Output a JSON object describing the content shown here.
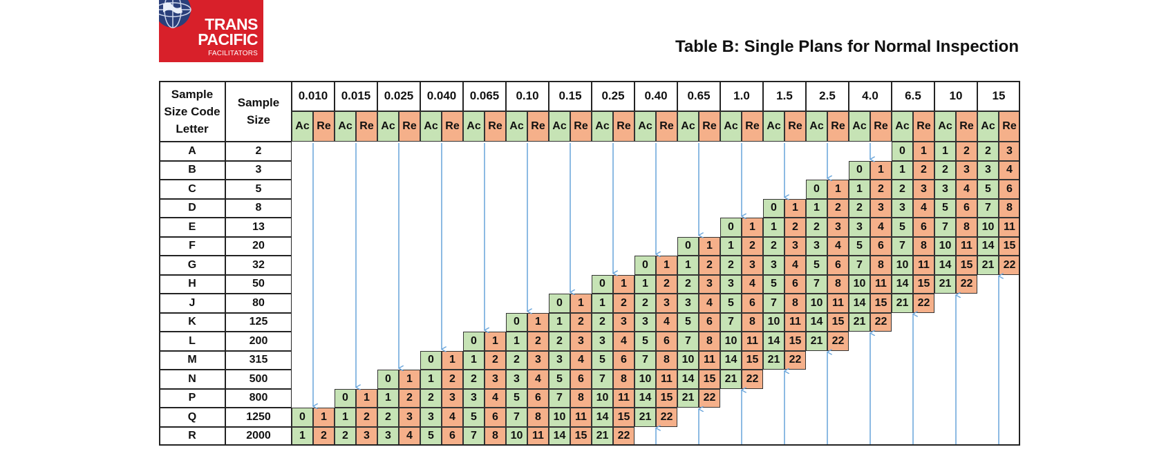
{
  "logo": {
    "line1": "TRANS",
    "line2": "PACIFIC",
    "line3": "FACILITATORS",
    "globe_icon": "globe-icon"
  },
  "title": "Table B: Single Plans for Normal Inspection",
  "table": {
    "header_code": [
      "Sample",
      "Size Code",
      "Letter"
    ],
    "header_size": [
      "Sample",
      "Size"
    ],
    "ac_label": "Ac",
    "re_label": "Re",
    "aql_levels": [
      "0.010",
      "0.015",
      "0.025",
      "0.040",
      "0.065",
      "0.10",
      "0.15",
      "0.25",
      "0.40",
      "0.65",
      "1.0",
      "1.5",
      "2.5",
      "4.0",
      "6.5",
      "10",
      "15"
    ],
    "rows": [
      {
        "code": "A",
        "size": "2"
      },
      {
        "code": "B",
        "size": "3"
      },
      {
        "code": "C",
        "size": "5"
      },
      {
        "code": "D",
        "size": "8"
      },
      {
        "code": "E",
        "size": "13"
      },
      {
        "code": "F",
        "size": "20"
      },
      {
        "code": "G",
        "size": "32"
      },
      {
        "code": "H",
        "size": "50"
      },
      {
        "code": "J",
        "size": "80"
      },
      {
        "code": "K",
        "size": "125"
      },
      {
        "code": "L",
        "size": "200"
      },
      {
        "code": "M",
        "size": "315"
      },
      {
        "code": "N",
        "size": "500"
      },
      {
        "code": "P",
        "size": "800"
      },
      {
        "code": "Q",
        "size": "1250"
      },
      {
        "code": "R",
        "size": "2000"
      }
    ],
    "acceptance_levels": [
      [
        0,
        1
      ],
      [
        1,
        2
      ],
      [
        2,
        3
      ],
      [
        3,
        4
      ],
      [
        5,
        6
      ],
      [
        7,
        8
      ],
      [
        10,
        11
      ],
      [
        14,
        15
      ],
      [
        21,
        22
      ]
    ],
    "plan_start_rows": [
      14,
      13,
      12,
      11,
      10,
      9,
      8,
      7,
      6,
      5,
      4,
      3,
      2,
      1,
      0,
      -1,
      -2
    ],
    "colors": {
      "accept": "#c6e3b5",
      "reject": "#f5b08a",
      "arrow": "#6fa8dc",
      "border": "#222222"
    }
  }
}
